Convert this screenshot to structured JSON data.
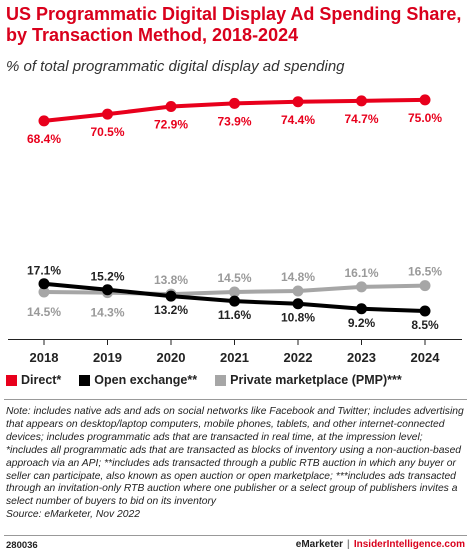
{
  "header": {
    "title": "US Programmatic Digital Display Ad Spending Share, by Transaction Method, 2018-2024",
    "subtitle": "% of total programmatic digital display ad spending"
  },
  "chart_data": {
    "type": "line",
    "title": "US Programmatic Digital Display Ad Spending Share, by Transaction Method, 2018-2024",
    "subtitle": "% of total programmatic digital display ad spending",
    "x": [
      "2018",
      "2019",
      "2020",
      "2021",
      "2022",
      "2023",
      "2024"
    ],
    "ylim": [
      0,
      80
    ],
    "grid": false,
    "legend_position": "bottom",
    "series": [
      {
        "name": "Direct*",
        "color": "#e8001c",
        "values": [
          68.4,
          70.5,
          72.9,
          73.9,
          74.4,
          74.7,
          75.0
        ],
        "labels": [
          "68.4%",
          "70.5%",
          "72.9%",
          "73.9%",
          "74.4%",
          "74.7%",
          "75.0%"
        ]
      },
      {
        "name": "Open exchange**",
        "color": "#000000",
        "values": [
          17.1,
          15.2,
          13.2,
          11.6,
          10.8,
          9.2,
          8.5
        ],
        "labels": [
          "17.1%",
          "15.2%",
          "13.2%",
          "11.6%",
          "10.8%",
          "9.2%",
          "8.5%"
        ]
      },
      {
        "name": "Private marketplace (PMP)***",
        "color": "#a6a6a6",
        "values": [
          14.5,
          14.3,
          13.8,
          14.5,
          14.8,
          16.1,
          16.5
        ],
        "labels": [
          "14.5%",
          "14.3%",
          "13.8%",
          "14.5%",
          "14.8%",
          "16.1%",
          "16.5%"
        ]
      }
    ]
  },
  "note": "Note: includes native ads and ads on social networks like Facebook and Twitter; includes advertising that appears on desktop/laptop computers, mobile phones, tablets, and other internet-connected devices; includes programmatic ads that are transacted in real time, at the impression level; *includes all programmatic ads that are transacted as blocks of inventory using a non-auction-based approach via an API; **includes ads transacted through a public RTB auction in which any buyer or seller can participate, also known as open auction or open marketplace; ***includes ads transacted through an invitation-only RTB auction where one publisher or a select group of publishers invites a select number of buyers to bid on its inventory",
  "source": "Source: eMarketer, Nov 2022",
  "footer": {
    "chart_id": "280036",
    "brand_left": "eMarketer",
    "separator": "|",
    "brand_right": "InsiderIntelligence.com"
  }
}
